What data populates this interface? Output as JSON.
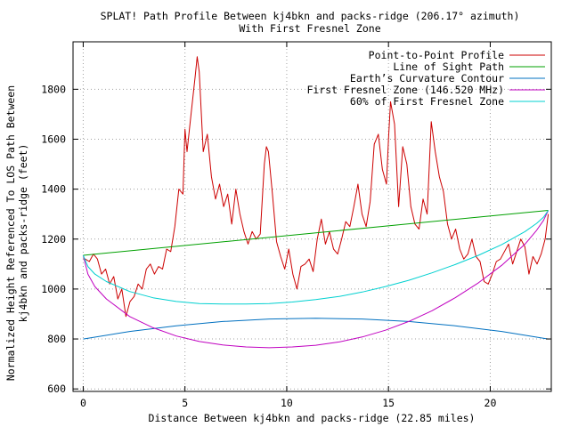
{
  "chart_data": {
    "type": "line",
    "title": "SPLAT! Path Profile Between kj4bkn and packs-ridge (206.17° azimuth)",
    "subtitle": "With First Fresnel Zone",
    "xlabel": "Distance Between kj4bkn and packs-ridge (22.85 miles)",
    "ylabel_line1": "Normalized Height Referenced To LOS Path Between",
    "ylabel_line2": "kj4bkn and packs-ridge (feet)",
    "xlim": [
      -0.5,
      23
    ],
    "ylim": [
      590,
      1990
    ],
    "xticks": [
      0,
      5,
      10,
      15,
      20
    ],
    "yticks": [
      600,
      800,
      1000,
      1200,
      1400,
      1600,
      1800
    ],
    "grid": true,
    "legend_position": "top-right",
    "series": [
      {
        "name": "Point-to-Point Profile",
        "color": "#cc0000",
        "x": [
          0,
          0.3,
          0.5,
          0.7,
          0.9,
          1.1,
          1.3,
          1.5,
          1.7,
          1.9,
          2.1,
          2.3,
          2.5,
          2.7,
          2.9,
          3.1,
          3.3,
          3.5,
          3.7,
          3.9,
          4.1,
          4.3,
          4.5,
          4.7,
          4.9,
          5.0,
          5.1,
          5.3,
          5.5,
          5.6,
          5.7,
          5.9,
          6.1,
          6.3,
          6.5,
          6.7,
          6.9,
          7.1,
          7.3,
          7.5,
          7.7,
          7.9,
          8.1,
          8.3,
          8.5,
          8.7,
          8.9,
          9.0,
          9.1,
          9.3,
          9.5,
          9.7,
          9.9,
          10.1,
          10.3,
          10.5,
          10.7,
          10.9,
          11.1,
          11.3,
          11.5,
          11.7,
          11.9,
          12.1,
          12.3,
          12.5,
          12.7,
          12.9,
          13.1,
          13.3,
          13.5,
          13.7,
          13.9,
          14.1,
          14.3,
          14.5,
          14.7,
          14.9,
          15.0,
          15.1,
          15.3,
          15.5,
          15.6,
          15.7,
          15.9,
          16.1,
          16.3,
          16.5,
          16.7,
          16.9,
          17.1,
          17.3,
          17.5,
          17.7,
          17.9,
          18.1,
          18.3,
          18.5,
          18.7,
          18.9,
          19.1,
          19.3,
          19.5,
          19.7,
          19.9,
          20.1,
          20.3,
          20.5,
          20.7,
          20.9,
          21.1,
          21.3,
          21.5,
          21.7,
          21.9,
          22.1,
          22.3,
          22.5,
          22.7,
          22.85
        ],
        "values": [
          1125,
          1110,
          1140,
          1120,
          1060,
          1080,
          1020,
          1050,
          960,
          1000,
          890,
          950,
          970,
          1020,
          1000,
          1080,
          1100,
          1060,
          1090,
          1080,
          1160,
          1150,
          1250,
          1400,
          1380,
          1640,
          1550,
          1700,
          1850,
          1930,
          1870,
          1550,
          1620,
          1450,
          1360,
          1420,
          1330,
          1380,
          1260,
          1400,
          1300,
          1230,
          1180,
          1230,
          1200,
          1220,
          1500,
          1570,
          1550,
          1380,
          1190,
          1130,
          1080,
          1160,
          1060,
          1000,
          1090,
          1100,
          1120,
          1070,
          1200,
          1280,
          1180,
          1230,
          1160,
          1140,
          1200,
          1270,
          1250,
          1330,
          1420,
          1300,
          1250,
          1350,
          1580,
          1620,
          1480,
          1420,
          1600,
          1750,
          1660,
          1330,
          1450,
          1570,
          1500,
          1330,
          1260,
          1240,
          1360,
          1300,
          1670,
          1550,
          1450,
          1390,
          1260,
          1200,
          1240,
          1160,
          1120,
          1140,
          1200,
          1130,
          1110,
          1030,
          1020,
          1060,
          1110,
          1120,
          1150,
          1180,
          1100,
          1150,
          1200,
          1170,
          1060,
          1130,
          1100,
          1140,
          1200,
          1300
        ]
      },
      {
        "name": "Line of Sight Path",
        "color": "#00a000",
        "x": [
          0,
          22.85
        ],
        "values": [
          1135,
          1315
        ]
      },
      {
        "name": "Earth’s Curvature Contour",
        "color": "#0070c0",
        "x": [
          0,
          2.285,
          4.57,
          6.855,
          9.14,
          11.425,
          13.71,
          15.995,
          18.28,
          20.565,
          22.85
        ],
        "values": [
          800,
          830,
          853,
          870,
          880,
          883,
          880,
          870,
          853,
          830,
          800
        ]
      },
      {
        "name": "First Fresnel Zone (146.520 MHz)",
        "color": "#c000c0",
        "x": [
          0,
          0.23,
          0.57,
          1.14,
          2.285,
          3.43,
          4.57,
          5.71,
          6.855,
          8.0,
          9.14,
          10.28,
          11.425,
          12.57,
          13.71,
          14.85,
          15.995,
          17.14,
          18.28,
          19.42,
          20.565,
          21.71,
          22.28,
          22.62,
          22.85
        ],
        "values": [
          1135,
          1060,
          1010,
          960,
          890,
          845,
          812,
          790,
          776,
          768,
          765,
          768,
          775,
          788,
          808,
          835,
          870,
          913,
          965,
          1025,
          1095,
          1180,
          1235,
          1275,
          1315
        ]
      },
      {
        "name": "60% of First Fresnel Zone",
        "color": "#00d0d0",
        "x": [
          0,
          0.23,
          0.57,
          1.14,
          2.285,
          3.43,
          4.57,
          5.71,
          6.855,
          8.0,
          9.14,
          10.28,
          11.425,
          12.57,
          13.71,
          14.85,
          15.995,
          17.14,
          18.28,
          19.42,
          20.565,
          21.71,
          22.28,
          22.62,
          22.85
        ],
        "values": [
          1135,
          1090,
          1060,
          1030,
          990,
          965,
          950,
          942,
          940,
          940,
          942,
          948,
          958,
          970,
          988,
          1010,
          1035,
          1065,
          1098,
          1135,
          1178,
          1230,
          1263,
          1288,
          1315
        ]
      }
    ]
  }
}
